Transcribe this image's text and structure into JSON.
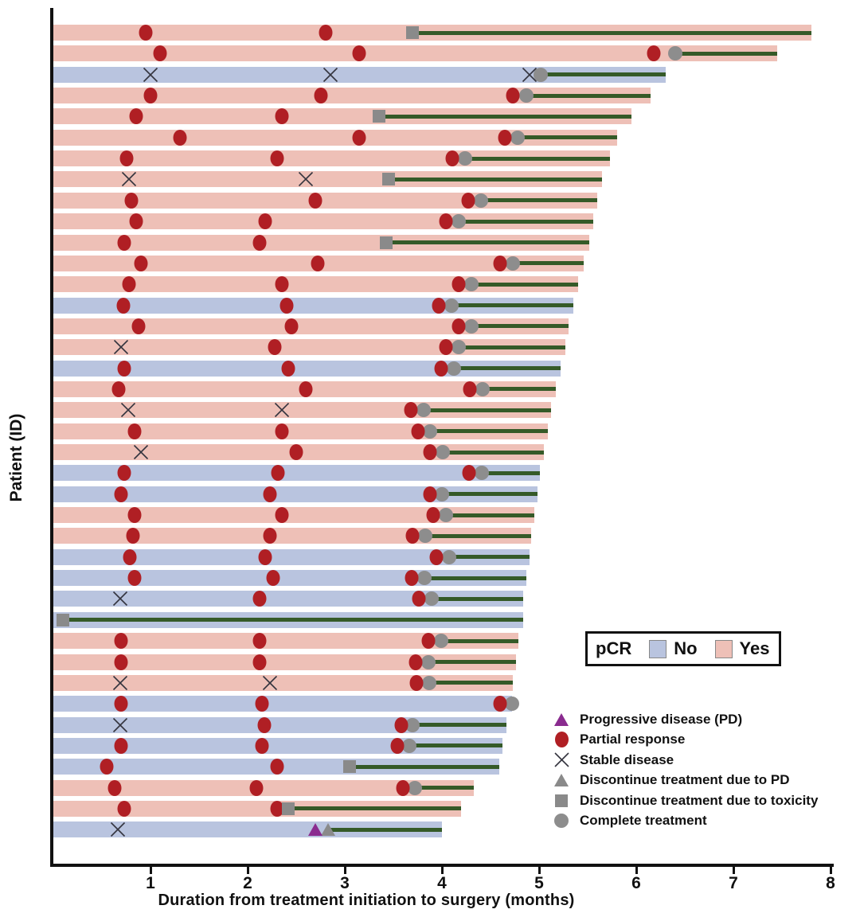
{
  "chart_data": {
    "type": "bar",
    "variant": "swimmer-plot",
    "title": "",
    "xlabel": "Duration from treatment initiation to surgery (months)",
    "ylabel": "Patient (ID)",
    "x_ticks": [
      1,
      2,
      3,
      4,
      5,
      6,
      7,
      8
    ],
    "xlim": [
      0,
      8.3
    ],
    "grid": false,
    "pcr_legend": {
      "title": "pCR",
      "no_label": "No",
      "yes_label": "Yes"
    },
    "marker_legend": [
      {
        "marker": "pd",
        "label": "Progressive disease (PD)"
      },
      {
        "marker": "pr",
        "label": "Partial response"
      },
      {
        "marker": "sd",
        "label": "Stable disease"
      },
      {
        "marker": "disc_pd",
        "label": "Discontinue treatment due to PD"
      },
      {
        "marker": "tox",
        "label": "Discontinue treatment due to toxicity"
      },
      {
        "marker": "complete",
        "label": "Complete treatment"
      }
    ],
    "colors": {
      "pcr_yes": "#eec0b7",
      "pcr_no": "#b9c4df",
      "partial_response": "#b01f24",
      "stable_disease": "#34343e",
      "progressive_disease": "#8a2b8f",
      "discontinue_gray": "#8a8a8a",
      "complete_gray": "#8d8d8d",
      "treatment_line": "#355a28",
      "axis": "#111111"
    },
    "patients": [
      {
        "pcr": "Yes",
        "surgery": 7.8,
        "line_start": 3.7,
        "events": [
          {
            "t": "pr",
            "x": 0.95
          },
          {
            "t": "pr",
            "x": 2.8
          },
          {
            "t": "tox",
            "x": 3.7
          }
        ]
      },
      {
        "pcr": "Yes",
        "surgery": 7.45,
        "line_start": 6.4,
        "events": [
          {
            "t": "pr",
            "x": 1.1
          },
          {
            "t": "pr",
            "x": 3.15
          },
          {
            "t": "pr",
            "x": 6.18
          },
          {
            "t": "complete",
            "x": 6.4
          }
        ]
      },
      {
        "pcr": "No",
        "surgery": 6.3,
        "line_start": 5.02,
        "events": [
          {
            "t": "sd",
            "x": 1.0
          },
          {
            "t": "sd",
            "x": 2.85
          },
          {
            "t": "sd",
            "x": 4.9
          },
          {
            "t": "complete",
            "x": 5.02
          }
        ]
      },
      {
        "pcr": "Yes",
        "surgery": 6.15,
        "line_start": 4.87,
        "events": [
          {
            "t": "pr",
            "x": 1.0
          },
          {
            "t": "pr",
            "x": 2.75
          },
          {
            "t": "pr",
            "x": 4.73
          },
          {
            "t": "complete",
            "x": 4.87
          }
        ]
      },
      {
        "pcr": "Yes",
        "surgery": 5.95,
        "line_start": 3.35,
        "events": [
          {
            "t": "pr",
            "x": 0.85
          },
          {
            "t": "pr",
            "x": 2.35
          },
          {
            "t": "tox",
            "x": 3.35
          }
        ]
      },
      {
        "pcr": "Yes",
        "surgery": 5.8,
        "line_start": 4.78,
        "events": [
          {
            "t": "pr",
            "x": 1.3
          },
          {
            "t": "pr",
            "x": 3.15
          },
          {
            "t": "pr",
            "x": 4.65
          },
          {
            "t": "complete",
            "x": 4.78
          }
        ]
      },
      {
        "pcr": "Yes",
        "surgery": 5.73,
        "line_start": 4.24,
        "events": [
          {
            "t": "pr",
            "x": 0.75
          },
          {
            "t": "pr",
            "x": 2.3
          },
          {
            "t": "pr",
            "x": 4.11
          },
          {
            "t": "complete",
            "x": 4.24
          }
        ]
      },
      {
        "pcr": "Yes",
        "surgery": 5.65,
        "line_start": 3.45,
        "events": [
          {
            "t": "sd",
            "x": 0.78
          },
          {
            "t": "sd",
            "x": 2.6
          },
          {
            "t": "tox",
            "x": 3.45
          }
        ]
      },
      {
        "pcr": "Yes",
        "surgery": 5.6,
        "line_start": 4.4,
        "events": [
          {
            "t": "pr",
            "x": 0.8
          },
          {
            "t": "pr",
            "x": 2.7
          },
          {
            "t": "pr",
            "x": 4.27
          },
          {
            "t": "complete",
            "x": 4.4
          }
        ]
      },
      {
        "pcr": "Yes",
        "surgery": 5.56,
        "line_start": 4.17,
        "events": [
          {
            "t": "pr",
            "x": 0.85
          },
          {
            "t": "pr",
            "x": 2.18
          },
          {
            "t": "pr",
            "x": 4.04
          },
          {
            "t": "complete",
            "x": 4.17
          }
        ]
      },
      {
        "pcr": "Yes",
        "surgery": 5.52,
        "line_start": 3.43,
        "events": [
          {
            "t": "pr",
            "x": 0.73
          },
          {
            "t": "pr",
            "x": 2.12
          },
          {
            "t": "tox",
            "x": 3.43
          }
        ]
      },
      {
        "pcr": "Yes",
        "surgery": 5.46,
        "line_start": 4.73,
        "events": [
          {
            "t": "pr",
            "x": 0.9
          },
          {
            "t": "pr",
            "x": 2.72
          },
          {
            "t": "pr",
            "x": 4.6
          },
          {
            "t": "complete",
            "x": 4.73
          }
        ]
      },
      {
        "pcr": "Yes",
        "surgery": 5.4,
        "line_start": 4.3,
        "events": [
          {
            "t": "pr",
            "x": 0.78
          },
          {
            "t": "pr",
            "x": 2.35
          },
          {
            "t": "pr",
            "x": 4.17
          },
          {
            "t": "complete",
            "x": 4.3
          }
        ]
      },
      {
        "pcr": "No",
        "surgery": 5.35,
        "line_start": 4.1,
        "events": [
          {
            "t": "pr",
            "x": 0.72
          },
          {
            "t": "pr",
            "x": 2.4
          },
          {
            "t": "pr",
            "x": 3.97
          },
          {
            "t": "complete",
            "x": 4.1
          }
        ]
      },
      {
        "pcr": "Yes",
        "surgery": 5.3,
        "line_start": 4.3,
        "events": [
          {
            "t": "pr",
            "x": 0.88
          },
          {
            "t": "pr",
            "x": 2.45
          },
          {
            "t": "pr",
            "x": 4.17
          },
          {
            "t": "complete",
            "x": 4.3
          }
        ]
      },
      {
        "pcr": "Yes",
        "surgery": 5.27,
        "line_start": 4.17,
        "events": [
          {
            "t": "sd",
            "x": 0.7
          },
          {
            "t": "pr",
            "x": 2.28
          },
          {
            "t": "pr",
            "x": 4.04
          },
          {
            "t": "complete",
            "x": 4.17
          }
        ]
      },
      {
        "pcr": "No",
        "surgery": 5.22,
        "line_start": 4.12,
        "events": [
          {
            "t": "pr",
            "x": 0.73
          },
          {
            "t": "pr",
            "x": 2.42
          },
          {
            "t": "pr",
            "x": 3.99
          },
          {
            "t": "complete",
            "x": 4.12
          }
        ]
      },
      {
        "pcr": "Yes",
        "surgery": 5.17,
        "line_start": 4.42,
        "events": [
          {
            "t": "pr",
            "x": 0.67
          },
          {
            "t": "pr",
            "x": 2.6
          },
          {
            "t": "pr",
            "x": 4.29
          },
          {
            "t": "complete",
            "x": 4.42
          }
        ]
      },
      {
        "pcr": "Yes",
        "surgery": 5.12,
        "line_start": 3.81,
        "events": [
          {
            "t": "sd",
            "x": 0.77
          },
          {
            "t": "sd",
            "x": 2.35
          },
          {
            "t": "pr",
            "x": 3.68
          },
          {
            "t": "complete",
            "x": 3.81
          }
        ]
      },
      {
        "pcr": "Yes",
        "surgery": 5.09,
        "line_start": 3.88,
        "events": [
          {
            "t": "pr",
            "x": 0.84
          },
          {
            "t": "pr",
            "x": 2.35
          },
          {
            "t": "pr",
            "x": 3.75
          },
          {
            "t": "complete",
            "x": 3.88
          }
        ]
      },
      {
        "pcr": "Yes",
        "surgery": 5.05,
        "line_start": 4.01,
        "events": [
          {
            "t": "sd",
            "x": 0.9
          },
          {
            "t": "pr",
            "x": 2.5
          },
          {
            "t": "pr",
            "x": 3.88
          },
          {
            "t": "complete",
            "x": 4.01
          }
        ]
      },
      {
        "pcr": "No",
        "surgery": 5.01,
        "line_start": 4.41,
        "events": [
          {
            "t": "pr",
            "x": 0.73
          },
          {
            "t": "pr",
            "x": 2.31
          },
          {
            "t": "pr",
            "x": 4.28
          },
          {
            "t": "complete",
            "x": 4.41
          }
        ]
      },
      {
        "pcr": "No",
        "surgery": 4.98,
        "line_start": 4.0,
        "events": [
          {
            "t": "pr",
            "x": 0.7
          },
          {
            "t": "pr",
            "x": 2.23
          },
          {
            "t": "pr",
            "x": 3.88
          },
          {
            "t": "complete",
            "x": 4.0
          }
        ]
      },
      {
        "pcr": "Yes",
        "surgery": 4.95,
        "line_start": 4.04,
        "events": [
          {
            "t": "pr",
            "x": 0.84
          },
          {
            "t": "pr",
            "x": 2.35
          },
          {
            "t": "pr",
            "x": 3.91
          },
          {
            "t": "complete",
            "x": 4.04
          }
        ]
      },
      {
        "pcr": "Yes",
        "surgery": 4.92,
        "line_start": 3.83,
        "events": [
          {
            "t": "pr",
            "x": 0.82
          },
          {
            "t": "pr",
            "x": 2.23
          },
          {
            "t": "pr",
            "x": 3.7
          },
          {
            "t": "complete",
            "x": 3.83
          }
        ]
      },
      {
        "pcr": "No",
        "surgery": 4.9,
        "line_start": 4.07,
        "events": [
          {
            "t": "pr",
            "x": 0.79
          },
          {
            "t": "pr",
            "x": 2.18
          },
          {
            "t": "pr",
            "x": 3.94
          },
          {
            "t": "complete",
            "x": 4.07
          }
        ]
      },
      {
        "pcr": "No",
        "surgery": 4.87,
        "line_start": 3.82,
        "events": [
          {
            "t": "pr",
            "x": 0.84
          },
          {
            "t": "pr",
            "x": 2.26
          },
          {
            "t": "pr",
            "x": 3.69
          },
          {
            "t": "complete",
            "x": 3.82
          }
        ]
      },
      {
        "pcr": "No",
        "surgery": 4.84,
        "line_start": 3.89,
        "events": [
          {
            "t": "sd",
            "x": 0.69
          },
          {
            "t": "pr",
            "x": 2.12
          },
          {
            "t": "pr",
            "x": 3.76
          },
          {
            "t": "complete",
            "x": 3.89
          }
        ]
      },
      {
        "pcr": "No",
        "surgery": 4.84,
        "line_start": 0.1,
        "events": [
          {
            "t": "tox",
            "x": 0.1
          }
        ]
      },
      {
        "pcr": "Yes",
        "surgery": 4.79,
        "line_start": 3.99,
        "events": [
          {
            "t": "pr",
            "x": 0.7
          },
          {
            "t": "pr",
            "x": 2.12
          },
          {
            "t": "pr",
            "x": 3.86
          },
          {
            "t": "complete",
            "x": 3.99
          }
        ]
      },
      {
        "pcr": "Yes",
        "surgery": 4.76,
        "line_start": 3.86,
        "events": [
          {
            "t": "pr",
            "x": 0.7
          },
          {
            "t": "pr",
            "x": 2.12
          },
          {
            "t": "pr",
            "x": 3.73
          },
          {
            "t": "complete",
            "x": 3.86
          }
        ]
      },
      {
        "pcr": "Yes",
        "surgery": 4.73,
        "line_start": 3.87,
        "events": [
          {
            "t": "sd",
            "x": 0.69
          },
          {
            "t": "sd",
            "x": 2.23
          },
          {
            "t": "pr",
            "x": 3.74
          },
          {
            "t": "complete",
            "x": 3.87
          }
        ]
      },
      {
        "pcr": "No",
        "surgery": 4.72,
        "line_start": null,
        "events": [
          {
            "t": "pr",
            "x": 0.7
          },
          {
            "t": "pr",
            "x": 2.15
          },
          {
            "t": "pr",
            "x": 4.6
          },
          {
            "t": "complete",
            "x": 4.72
          }
        ]
      },
      {
        "pcr": "No",
        "surgery": 4.66,
        "line_start": 3.7,
        "events": [
          {
            "t": "sd",
            "x": 0.69
          },
          {
            "t": "pr",
            "x": 2.17
          },
          {
            "t": "pr",
            "x": 3.58
          },
          {
            "t": "complete",
            "x": 3.7
          }
        ]
      },
      {
        "pcr": "No",
        "surgery": 4.62,
        "line_start": 3.66,
        "events": [
          {
            "t": "pr",
            "x": 0.7
          },
          {
            "t": "pr",
            "x": 2.15
          },
          {
            "t": "pr",
            "x": 3.54
          },
          {
            "t": "complete",
            "x": 3.66
          }
        ]
      },
      {
        "pcr": "No",
        "surgery": 4.59,
        "line_start": 3.05,
        "events": [
          {
            "t": "pr",
            "x": 0.55
          },
          {
            "t": "pr",
            "x": 2.3
          },
          {
            "t": "tox",
            "x": 3.05
          }
        ]
      },
      {
        "pcr": "Yes",
        "surgery": 4.33,
        "line_start": 3.72,
        "events": [
          {
            "t": "pr",
            "x": 0.63
          },
          {
            "t": "pr",
            "x": 2.09
          },
          {
            "t": "pr",
            "x": 3.6
          },
          {
            "t": "complete",
            "x": 3.72
          }
        ]
      },
      {
        "pcr": "Yes",
        "surgery": 4.2,
        "line_start": 2.42,
        "events": [
          {
            "t": "pr",
            "x": 0.73
          },
          {
            "t": "pr",
            "x": 2.3
          },
          {
            "t": "tox",
            "x": 2.42
          }
        ]
      },
      {
        "pcr": "No",
        "surgery": 4.0,
        "line_start": 2.83,
        "events": [
          {
            "t": "sd",
            "x": 0.66
          },
          {
            "t": "pd",
            "x": 2.7
          },
          {
            "t": "disc_pd",
            "x": 2.83
          }
        ]
      }
    ]
  }
}
